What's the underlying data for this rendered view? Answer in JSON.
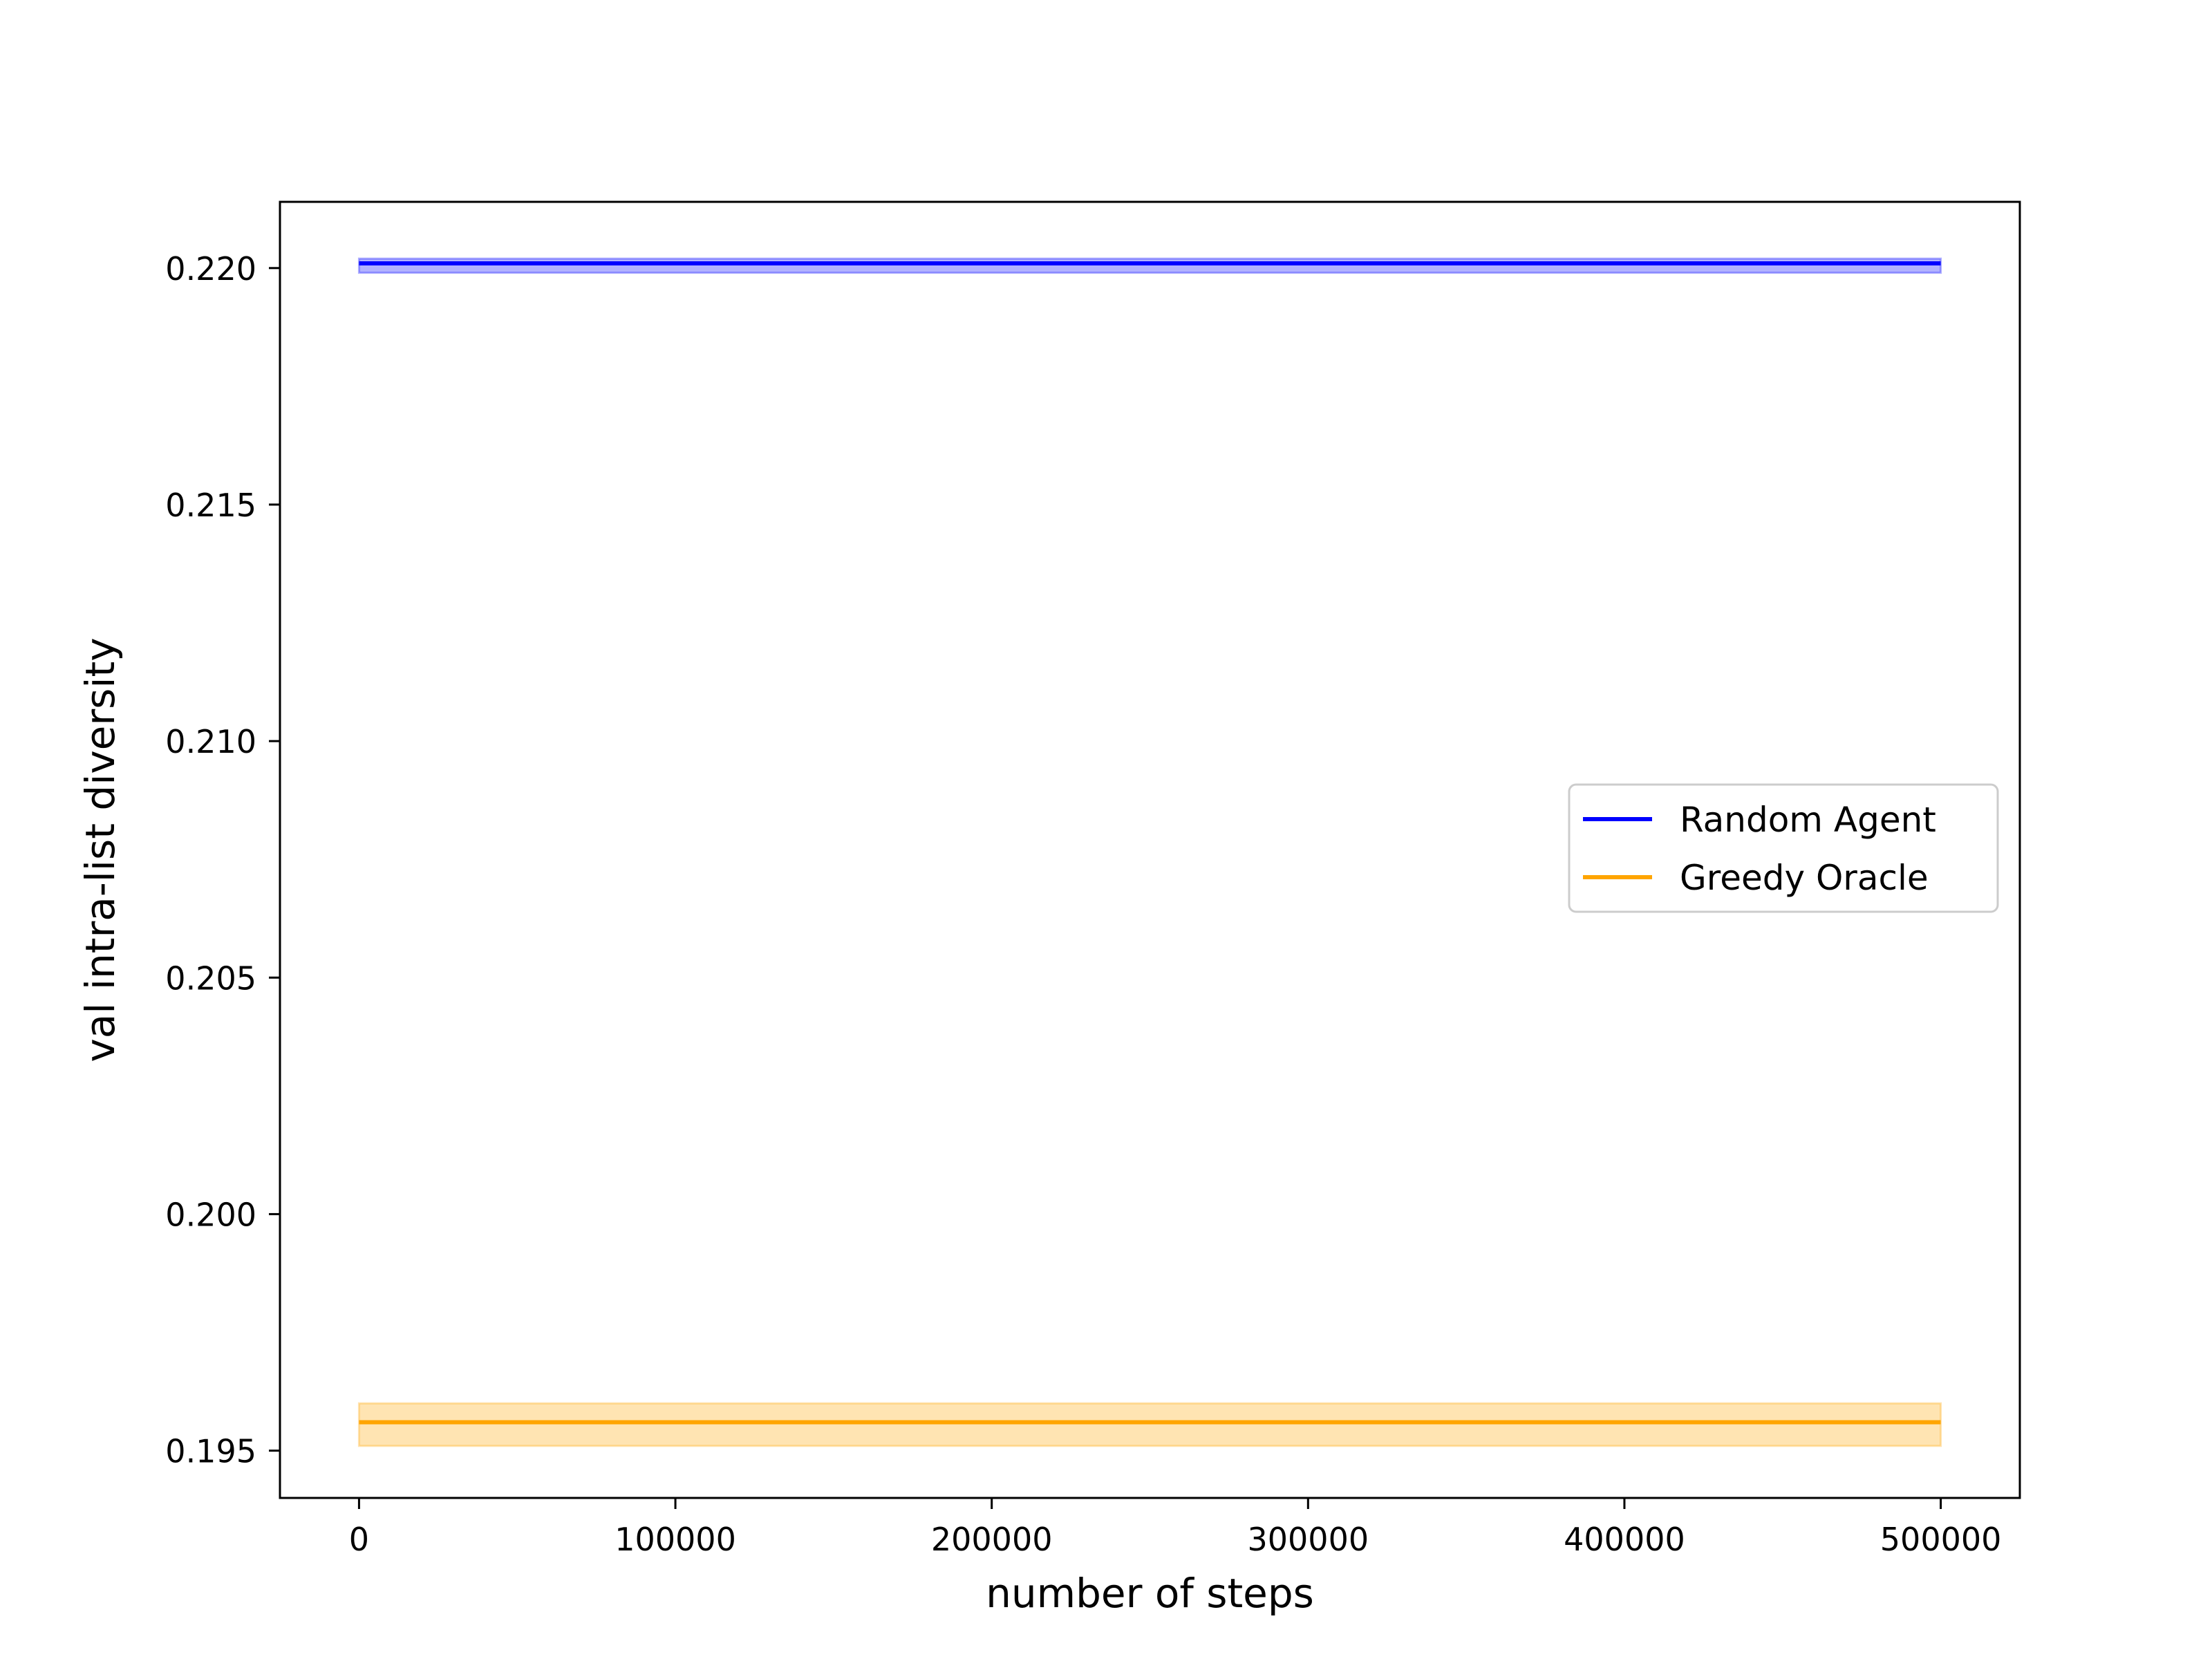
{
  "chart_data": {
    "type": "line",
    "title": "",
    "xlabel": "number of steps",
    "ylabel": "val intra-list diversity",
    "xlim": [
      -25000,
      525000
    ],
    "ylim": [
      0.194,
      0.2214
    ],
    "xticks": [
      0,
      100000,
      200000,
      300000,
      400000,
      500000
    ],
    "xtick_labels": [
      "0",
      "100000",
      "200000",
      "300000",
      "400000",
      "500000"
    ],
    "yticks": [
      0.195,
      0.2,
      0.205,
      0.21,
      0.215,
      0.22
    ],
    "ytick_labels": [
      "0.195",
      "0.200",
      "0.205",
      "0.210",
      "0.215",
      "0.220"
    ],
    "grid": false,
    "legend_position": "center-right",
    "series": [
      {
        "name": "Random Agent",
        "color": "#0000ff",
        "x": [
          0,
          500000
        ],
        "y": [
          0.2201,
          0.2201
        ],
        "band_lower": [
          0.2199,
          0.2199
        ],
        "band_upper": [
          0.2202,
          0.2202
        ]
      },
      {
        "name": "Greedy Oracle",
        "color": "#ffa500",
        "x": [
          0,
          500000
        ],
        "y": [
          0.1956,
          0.1956
        ],
        "band_lower": [
          0.1951,
          0.1951
        ],
        "band_upper": [
          0.196,
          0.196
        ]
      }
    ]
  }
}
